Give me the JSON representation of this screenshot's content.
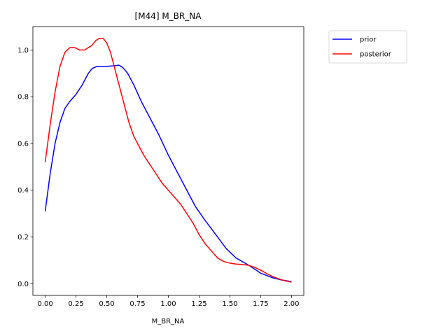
{
  "chart_data": {
    "type": "line",
    "title": "[M44] M_BR_NA",
    "xlabel": "M_BR_NA",
    "ylabel": "",
    "xlim": [
      -0.1,
      2.1
    ],
    "ylim": [
      -0.05,
      1.1
    ],
    "xticks": [
      0.0,
      0.25,
      0.5,
      0.75,
      1.0,
      1.25,
      1.5,
      1.75,
      2.0
    ],
    "xtick_labels": [
      "0.00",
      "0.25",
      "0.50",
      "0.75",
      "1.00",
      "1.25",
      "1.50",
      "1.75",
      "2.00"
    ],
    "yticks": [
      0.0,
      0.2,
      0.4,
      0.6,
      0.8,
      1.0
    ],
    "ytick_labels": [
      "0.0",
      "0.2",
      "0.4",
      "0.6",
      "0.8",
      "1.0"
    ],
    "grid": false,
    "legend_position": "outside-top-right",
    "series": [
      {
        "name": "prior",
        "color": "#0000ff",
        "x": [
          0.0,
          0.04,
          0.08,
          0.12,
          0.16,
          0.2,
          0.25,
          0.3,
          0.35,
          0.38,
          0.42,
          0.45,
          0.5,
          0.55,
          0.6,
          0.63,
          0.67,
          0.72,
          0.78,
          0.85,
          0.92,
          1.0,
          1.08,
          1.15,
          1.22,
          1.3,
          1.4,
          1.47,
          1.55,
          1.65,
          1.75,
          1.85,
          1.92,
          2.0
        ],
        "y": [
          0.31,
          0.47,
          0.6,
          0.69,
          0.75,
          0.78,
          0.81,
          0.85,
          0.9,
          0.92,
          0.93,
          0.93,
          0.93,
          0.932,
          0.935,
          0.925,
          0.9,
          0.85,
          0.78,
          0.71,
          0.64,
          0.55,
          0.47,
          0.4,
          0.33,
          0.27,
          0.2,
          0.15,
          0.11,
          0.08,
          0.045,
          0.025,
          0.016,
          0.009
        ]
      },
      {
        "name": "posterior",
        "color": "#ff0000",
        "x": [
          0.0,
          0.04,
          0.08,
          0.12,
          0.16,
          0.2,
          0.24,
          0.28,
          0.32,
          0.35,
          0.38,
          0.41,
          0.44,
          0.47,
          0.5,
          0.53,
          0.56,
          0.6,
          0.64,
          0.68,
          0.72,
          0.76,
          0.8,
          0.85,
          0.9,
          0.95,
          1.0,
          1.05,
          1.1,
          1.15,
          1.2,
          1.25,
          1.3,
          1.35,
          1.4,
          1.45,
          1.5,
          1.55,
          1.6,
          1.65,
          1.7,
          1.75,
          1.8,
          1.85,
          1.9,
          1.95,
          2.0
        ],
        "y": [
          0.52,
          0.68,
          0.82,
          0.93,
          0.99,
          1.01,
          1.01,
          1.0,
          1.0,
          1.01,
          1.02,
          1.04,
          1.05,
          1.05,
          1.03,
          0.99,
          0.93,
          0.85,
          0.77,
          0.69,
          0.63,
          0.59,
          0.55,
          0.51,
          0.47,
          0.43,
          0.4,
          0.37,
          0.34,
          0.3,
          0.26,
          0.21,
          0.17,
          0.14,
          0.11,
          0.095,
          0.088,
          0.084,
          0.082,
          0.079,
          0.07,
          0.058,
          0.043,
          0.03,
          0.02,
          0.012,
          0.007
        ]
      }
    ]
  }
}
